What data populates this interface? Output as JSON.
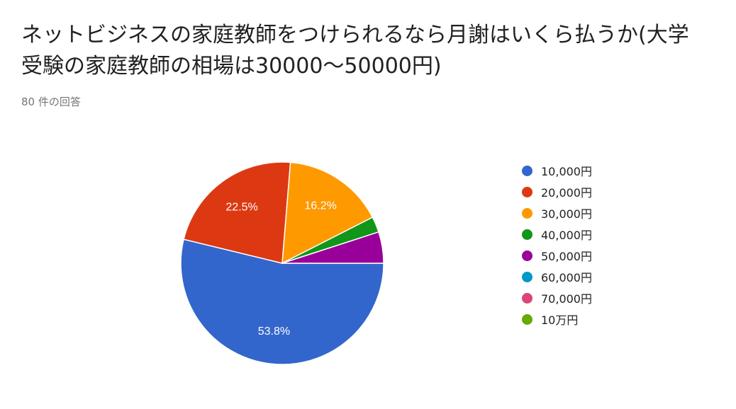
{
  "header": {
    "title_line1": "ネットビジネスの家庭教師をつけられるなら月謝はいくら払うか(大学",
    "title_line2": "受験の家庭教師の相場は30000～50000円)",
    "response_count": "80 件の回答"
  },
  "chart_data": {
    "type": "pie",
    "title": "ネットビジネスの家庭教師をつけられるなら月謝はいくら払うか(大学受験の家庭教師の相場は30000～50000円)",
    "total_responses": 80,
    "start_angle_deg": 90,
    "direction": "clockwise",
    "legend_position": "right",
    "slices": [
      {
        "label": "10,000円",
        "value": 53.8,
        "color": "#3366cc",
        "show_label": true,
        "label_text": "53.8%"
      },
      {
        "label": "20,000円",
        "value": 22.5,
        "color": "#dc3912",
        "show_label": true,
        "label_text": "22.5%"
      },
      {
        "label": "30,000円",
        "value": 16.2,
        "color": "#ff9900",
        "show_label": true,
        "label_text": "16.2%"
      },
      {
        "label": "40,000円",
        "value": 2.5,
        "color": "#109618",
        "show_label": false,
        "label_text": "2.5%"
      },
      {
        "label": "50,000円",
        "value": 5.0,
        "color": "#990099",
        "show_label": false,
        "label_text": "5%"
      },
      {
        "label": "60,000円",
        "value": 0,
        "color": "#0099c6",
        "show_label": false,
        "label_text": "0%"
      },
      {
        "label": "70,000円",
        "value": 0,
        "color": "#dd4477",
        "show_label": false,
        "label_text": "0%"
      },
      {
        "label": "10万円",
        "value": 0,
        "color": "#66aa00",
        "show_label": false,
        "label_text": "0%"
      }
    ]
  }
}
